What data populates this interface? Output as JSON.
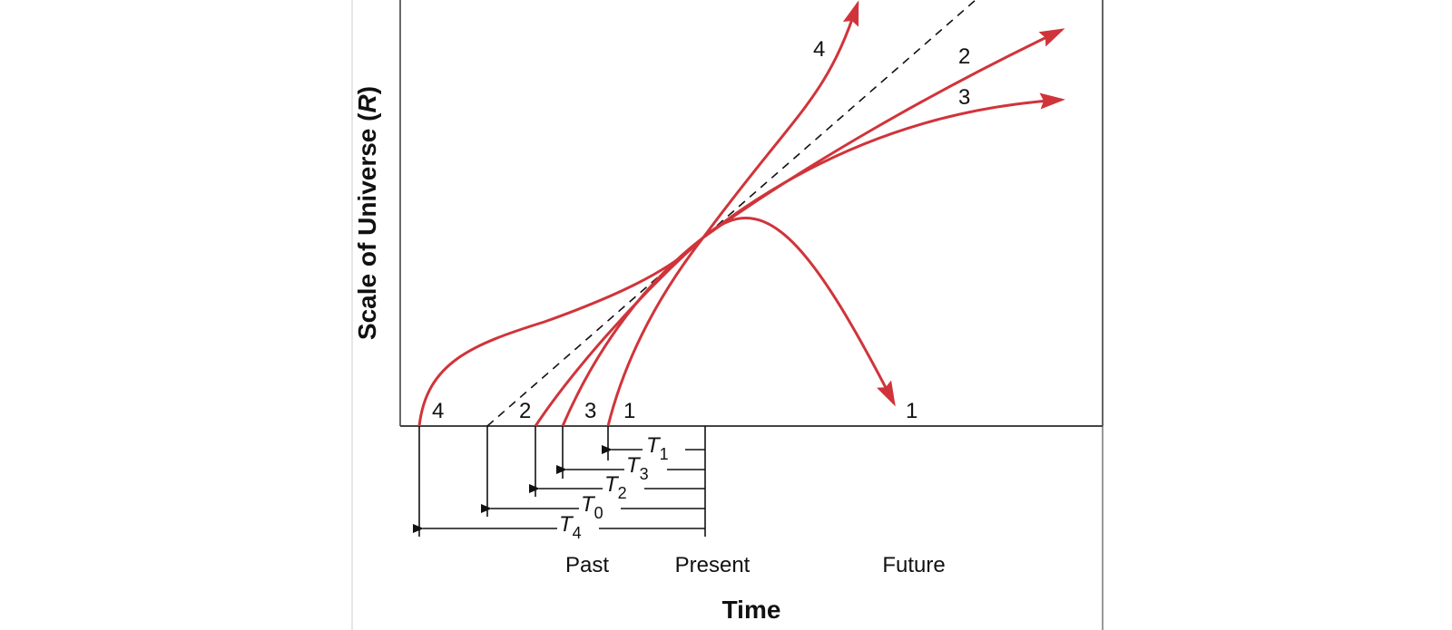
{
  "diagram": {
    "y_axis_title_main": "Scale of Universe (",
    "y_axis_title_var": "R",
    "y_axis_title_close": ")",
    "x_axis_title": "Time",
    "timeline": {
      "past": "Past",
      "present": "Present",
      "future": "Future"
    },
    "curve_labels": {
      "c1_start": "1",
      "c1_end": "1",
      "c2_start": "2",
      "c2_end": "2",
      "c3_start": "3",
      "c3_end": "3",
      "c4_start": "4",
      "c4_end": "4"
    },
    "intervals": [
      {
        "letter": "T",
        "sub": "1"
      },
      {
        "letter": "T",
        "sub": "3"
      },
      {
        "letter": "T",
        "sub": "2"
      },
      {
        "letter": "T",
        "sub": "0"
      },
      {
        "letter": "T",
        "sub": "4"
      }
    ],
    "colors": {
      "curve": "#d0343a",
      "lines": "#111111",
      "frame": "#444444"
    }
  }
}
